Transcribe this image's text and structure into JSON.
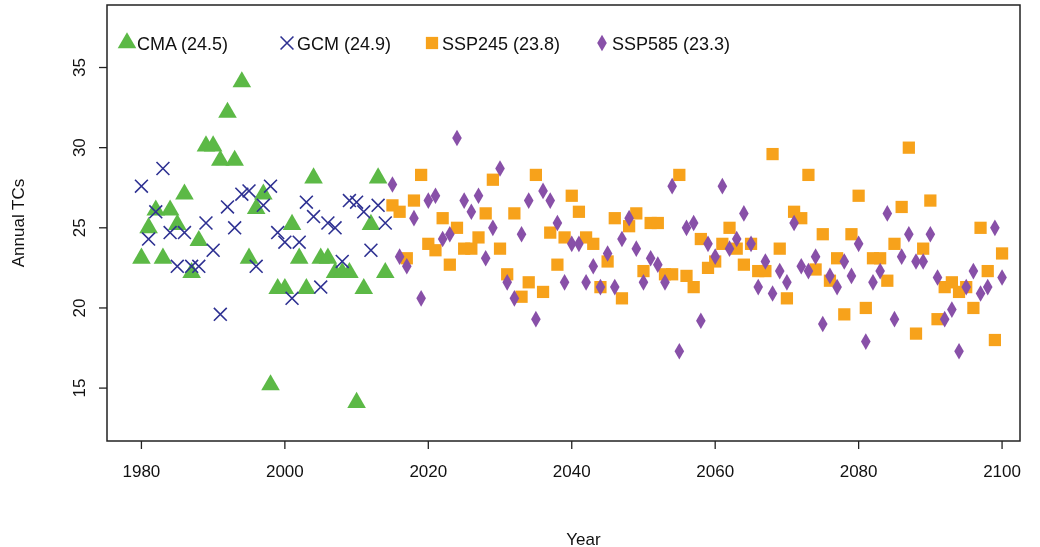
{
  "chart_data": {
    "type": "scatter",
    "xlabel": "Year",
    "ylabel": "Annual TCs",
    "xlim": [
      1975.2,
      2102.5
    ],
    "ylim": [
      11.7,
      38.9
    ],
    "xticks": [
      1980,
      2000,
      2020,
      2040,
      2060,
      2080,
      2100
    ],
    "yticks": [
      15,
      20,
      25,
      30,
      35
    ],
    "grid": false,
    "legend": "top left",
    "series": [
      {
        "name": "CMA (24.5)",
        "color": "#5cb946",
        "marker": "triangle",
        "x": [
          1980,
          1981,
          1982,
          1983,
          1984,
          1985,
          1986,
          1987,
          1988,
          1989,
          1990,
          1991,
          1992,
          1993,
          1994,
          1995,
          1996,
          1997,
          1998,
          1999,
          2000,
          2001,
          2002,
          2003,
          2004,
          2005,
          2006,
          2007,
          2008,
          2009,
          2010,
          2011,
          2012,
          2013,
          2014
        ],
        "values": [
          23.1,
          25.0,
          26.1,
          23.1,
          26.1,
          25.2,
          27.1,
          22.2,
          24.2,
          30.1,
          30.1,
          29.2,
          32.2,
          29.2,
          34.1,
          23.1,
          26.2,
          27.1,
          15.2,
          21.2,
          21.2,
          25.2,
          23.1,
          21.2,
          28.1,
          23.1,
          23.1,
          22.2,
          22.2,
          22.2,
          14.1,
          21.2,
          25.2,
          28.1,
          22.2
        ]
      },
      {
        "name": "GCM (24.9)",
        "color": "#2e3192",
        "marker": "cross",
        "x": [
          1980,
          1981,
          1982,
          1983,
          1984,
          1985,
          1986,
          1987,
          1988,
          1989,
          1990,
          1991,
          1992,
          1993,
          1994,
          1995,
          1996,
          1997,
          1998,
          1999,
          2000,
          2001,
          2002,
          2003,
          2004,
          2005,
          2006,
          2007,
          2008,
          2009,
          2010,
          2011,
          2012,
          2013,
          2014
        ],
        "values": [
          27.6,
          24.3,
          26.0,
          28.7,
          24.7,
          22.6,
          24.7,
          22.6,
          22.6,
          25.3,
          23.6,
          19.6,
          26.3,
          25.0,
          27.1,
          27.3,
          22.6,
          26.4,
          27.6,
          24.7,
          24.1,
          20.6,
          24.1,
          26.6,
          25.7,
          21.3,
          25.3,
          25.0,
          22.9,
          26.7,
          26.6,
          26.0,
          23.6,
          26.4,
          25.3
        ]
      },
      {
        "name": "SSP245 (23.8)",
        "color": "#f7a21b",
        "marker": "square",
        "x": [
          2015,
          2016,
          2017,
          2018,
          2019,
          2020,
          2021,
          2022,
          2023,
          2024,
          2025,
          2026,
          2027,
          2028,
          2029,
          2030,
          2031,
          2032,
          2033,
          2034,
          2035,
          2036,
          2037,
          2038,
          2039,
          2040,
          2041,
          2042,
          2043,
          2044,
          2045,
          2046,
          2047,
          2048,
          2049,
          2050,
          2051,
          2052,
          2053,
          2054,
          2055,
          2056,
          2057,
          2058,
          2059,
          2060,
          2061,
          2062,
          2063,
          2064,
          2065,
          2066,
          2067,
          2068,
          2069,
          2070,
          2071,
          2072,
          2073,
          2074,
          2075,
          2076,
          2077,
          2078,
          2079,
          2080,
          2081,
          2082,
          2083,
          2084,
          2085,
          2086,
          2087,
          2088,
          2089,
          2090,
          2091,
          2092,
          2093,
          2094,
          2095,
          2096,
          2097,
          2098,
          2099,
          2100
        ],
        "values": [
          26.4,
          26.0,
          23.1,
          26.7,
          28.3,
          24.0,
          23.6,
          25.6,
          22.7,
          25.0,
          23.7,
          23.7,
          24.4,
          25.9,
          28.0,
          23.7,
          22.1,
          25.9,
          20.7,
          21.6,
          28.3,
          21.0,
          24.7,
          22.7,
          24.4,
          27.0,
          26.0,
          24.4,
          24.0,
          21.3,
          22.9,
          25.6,
          20.6,
          25.1,
          25.9,
          22.3,
          25.3,
          25.3,
          22.1,
          22.1,
          28.3,
          22.0,
          21.3,
          24.3,
          22.5,
          22.9,
          24.0,
          25.0,
          23.7,
          22.7,
          24.0,
          22.3,
          22.3,
          29.6,
          23.7,
          20.6,
          26.0,
          25.6,
          28.3,
          22.4,
          24.6,
          21.7,
          23.1,
          19.6,
          24.6,
          27.0,
          20.0,
          23.1,
          23.1,
          21.7,
          24.0,
          26.3,
          30.0,
          18.4,
          23.7,
          26.7,
          19.3,
          21.3,
          21.6,
          21.0,
          21.3,
          20.0,
          25.0,
          22.3,
          18.0,
          23.4
        ]
      },
      {
        "name": "SSP585 (23.3)",
        "color": "#8850a8",
        "marker": "diamond",
        "x": [
          2015,
          2016,
          2017,
          2018,
          2019,
          2020,
          2021,
          2022,
          2023,
          2024,
          2025,
          2026,
          2027,
          2028,
          2029,
          2030,
          2031,
          2032,
          2033,
          2034,
          2035,
          2036,
          2037,
          2038,
          2039,
          2040,
          2041,
          2042,
          2043,
          2044,
          2045,
          2046,
          2047,
          2048,
          2049,
          2050,
          2051,
          2052,
          2053,
          2054,
          2055,
          2056,
          2057,
          2058,
          2059,
          2060,
          2061,
          2062,
          2063,
          2064,
          2065,
          2066,
          2067,
          2068,
          2069,
          2070,
          2071,
          2072,
          2073,
          2074,
          2075,
          2076,
          2077,
          2078,
          2079,
          2080,
          2081,
          2082,
          2083,
          2084,
          2085,
          2086,
          2087,
          2088,
          2089,
          2090,
          2091,
          2092,
          2093,
          2094,
          2095,
          2096,
          2097,
          2098,
          2099,
          2100
        ],
        "values": [
          27.7,
          23.2,
          22.6,
          25.6,
          20.6,
          26.7,
          27.0,
          24.3,
          24.6,
          30.6,
          26.7,
          26.0,
          27.0,
          23.1,
          25.0,
          28.7,
          21.6,
          20.6,
          24.6,
          26.7,
          19.3,
          27.3,
          26.7,
          25.3,
          21.6,
          24.0,
          24.0,
          21.6,
          22.6,
          21.3,
          23.4,
          21.3,
          24.3,
          25.6,
          23.7,
          21.6,
          23.1,
          22.7,
          21.6,
          27.6,
          17.3,
          25.0,
          25.3,
          19.2,
          24.0,
          23.2,
          27.6,
          23.7,
          24.3,
          25.9,
          24.0,
          21.3,
          22.9,
          20.9,
          22.3,
          21.6,
          25.3,
          22.6,
          22.3,
          23.2,
          19.0,
          22.0,
          21.3,
          22.9,
          22.0,
          24.0,
          17.9,
          21.6,
          22.3,
          25.9,
          19.3,
          23.2,
          24.6,
          22.9,
          22.9,
          24.6,
          21.9,
          19.3,
          19.9,
          17.3,
          21.3,
          22.3,
          20.9,
          21.3,
          25.0,
          21.9
        ]
      }
    ]
  }
}
